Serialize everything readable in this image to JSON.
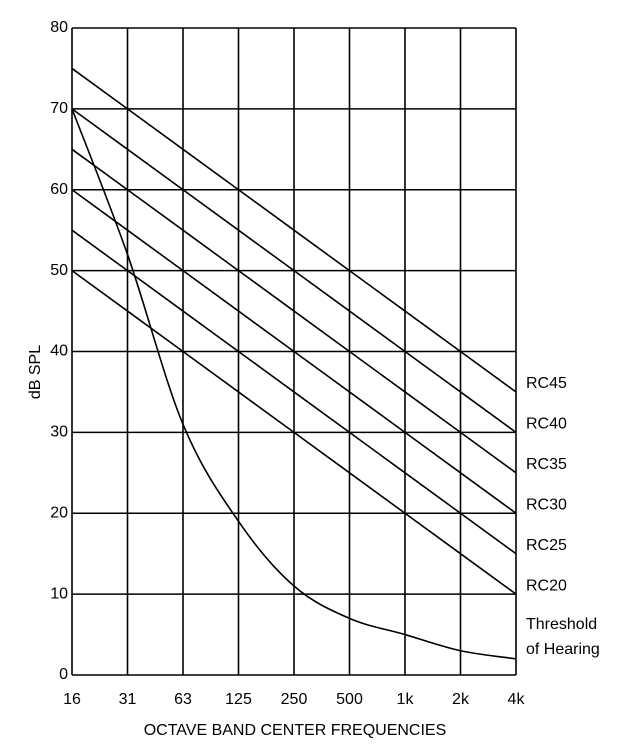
{
  "chart_data": {
    "type": "line",
    "title": "",
    "xlabel": "OCTAVE BAND CENTER FREQUENCIES",
    "ylabel": "dB SPL",
    "categories": [
      "16",
      "31",
      "63",
      "125",
      "250",
      "500",
      "1k",
      "2k",
      "4k"
    ],
    "ylim": [
      0,
      80
    ],
    "yticks": [
      0,
      10,
      20,
      30,
      40,
      50,
      60,
      70,
      80
    ],
    "grid": true,
    "legend": "none",
    "series": [
      {
        "name": "RC45",
        "values": [
          75,
          70,
          65,
          60,
          55,
          50,
          45,
          40,
          35
        ]
      },
      {
        "name": "RC40",
        "values": [
          70,
          65,
          60,
          55,
          50,
          45,
          40,
          35,
          30
        ]
      },
      {
        "name": "RC35",
        "values": [
          65,
          60,
          55,
          50,
          45,
          40,
          35,
          30,
          25
        ]
      },
      {
        "name": "RC30",
        "values": [
          60,
          55,
          50,
          45,
          40,
          35,
          30,
          25,
          20
        ]
      },
      {
        "name": "RC25",
        "values": [
          55,
          50,
          45,
          40,
          35,
          30,
          25,
          20,
          15
        ]
      },
      {
        "name": "RC20",
        "values": [
          50,
          45,
          40,
          35,
          30,
          25,
          20,
          15,
          10
        ]
      }
    ],
    "threshold": {
      "name_line1": "Threshold",
      "name_line2": "of Hearing",
      "values": [
        70,
        52,
        31,
        19,
        11,
        7,
        5,
        3,
        2
      ]
    },
    "colors": {
      "line": "#000000",
      "background": "#ffffff"
    }
  }
}
